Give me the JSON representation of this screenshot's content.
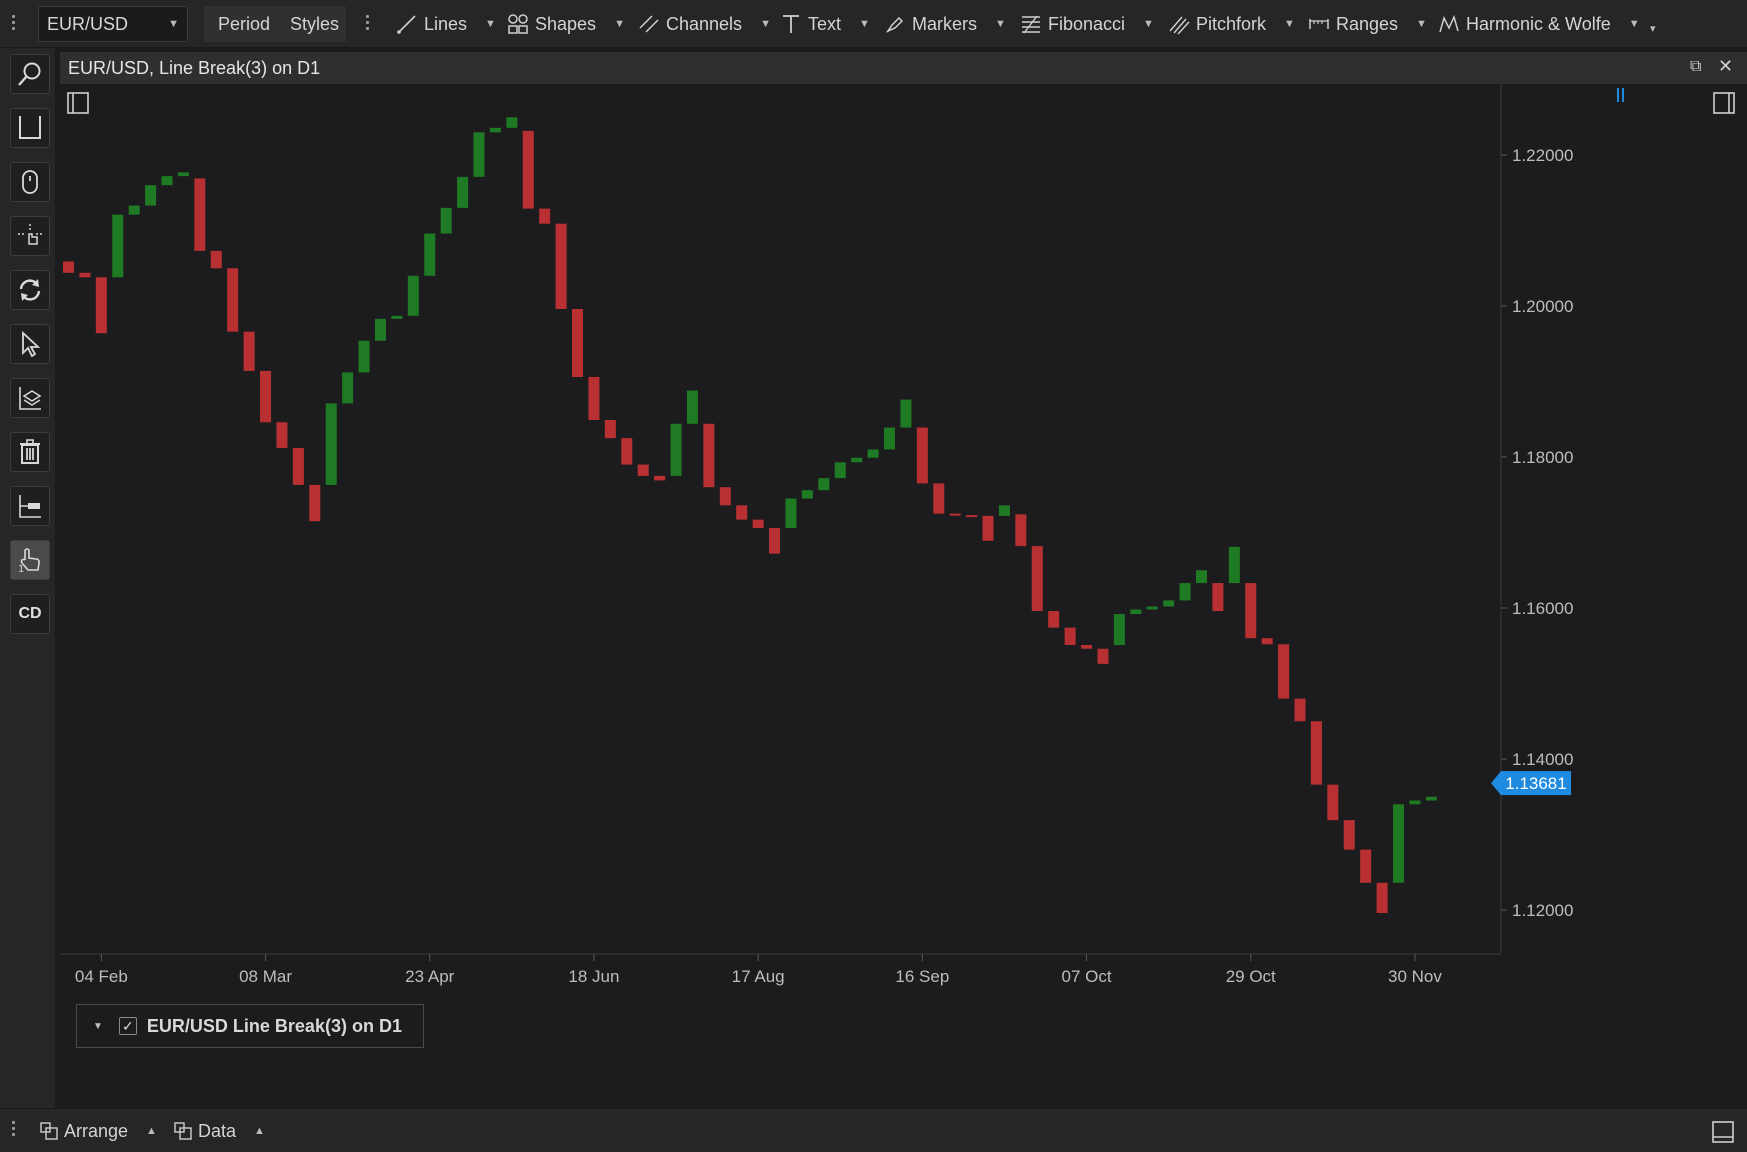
{
  "toolbar": {
    "symbol": "EUR/USD",
    "period_label": "Period",
    "styles_label": "Styles",
    "tools": [
      {
        "id": "lines",
        "label": "Lines",
        "icon": "line-tool-icon"
      },
      {
        "id": "shapes",
        "label": "Shapes",
        "icon": "shapes-icon"
      },
      {
        "id": "channels",
        "label": "Channels",
        "icon": "channels-icon"
      },
      {
        "id": "text",
        "label": "Text",
        "icon": "text-tool-icon"
      },
      {
        "id": "markers",
        "label": "Markers",
        "icon": "marker-icon"
      },
      {
        "id": "fibonacci",
        "label": "Fibonacci",
        "icon": "fibonacci-icon"
      },
      {
        "id": "pitchfork",
        "label": "Pitchfork",
        "icon": "pitchfork-icon"
      },
      {
        "id": "ranges",
        "label": "Ranges",
        "icon": "ranges-icon"
      },
      {
        "id": "harmonic",
        "label": "Harmonic & Wolfe",
        "icon": "harmonic-icon"
      }
    ]
  },
  "left_toolbar": {
    "items": [
      {
        "id": "zoom",
        "icon": "magnifier-icon"
      },
      {
        "id": "axis",
        "icon": "axis-frame-icon"
      },
      {
        "id": "mouse",
        "icon": "mouse-icon"
      },
      {
        "id": "crosshair",
        "icon": "crosshair-hand-icon"
      },
      {
        "id": "refresh",
        "icon": "refresh-icon"
      },
      {
        "id": "select",
        "icon": "cursor-icon"
      },
      {
        "id": "layers",
        "icon": "layers-icon"
      },
      {
        "id": "delete",
        "icon": "trash-icon"
      },
      {
        "id": "hline",
        "icon": "horizontal-line-icon"
      },
      {
        "id": "one-click",
        "icon": "one-click-trade-icon",
        "active": true
      },
      {
        "id": "cd",
        "label": "CD"
      }
    ]
  },
  "chart_window": {
    "title": "EUR/USD, Line Break(3) on D1",
    "legend_label": "EUR/USD Line Break(3) on D1",
    "current_price": "1.13681",
    "colors": {
      "up": "#1f7a24",
      "down": "#b93033",
      "price_tag": "#1f8be0",
      "background": "#1c1c1e"
    }
  },
  "chart_data": {
    "type": "line-break",
    "title": "EUR/USD, Line Break(3) on D1",
    "y_ticks": [
      "1.22000",
      "1.20000",
      "1.18000",
      "1.16000",
      "1.14000",
      "1.12000"
    ],
    "ylim": [
      1.1143,
      1.2245
    ],
    "x_ticks": [
      "04 Feb",
      "08 Mar",
      "23 Apr",
      "18 Jun",
      "17 Aug",
      "16 Sep",
      "07 Oct",
      "29 Oct",
      "30 Nov"
    ],
    "x_tick_index": [
      2,
      12,
      22,
      32,
      42,
      52,
      62,
      72,
      82
    ],
    "bricks": [
      {
        "o": 1.2059,
        "c": 1.2044,
        "dir": "down"
      },
      {
        "o": 1.2044,
        "c": 1.2038,
        "dir": "down"
      },
      {
        "o": 1.2038,
        "c": 1.1964,
        "dir": "down"
      },
      {
        "o": 1.2038,
        "c": 1.2121,
        "dir": "up"
      },
      {
        "o": 1.2121,
        "c": 1.2133,
        "dir": "up"
      },
      {
        "o": 1.2133,
        "c": 1.216,
        "dir": "up"
      },
      {
        "o": 1.216,
        "c": 1.2172,
        "dir": "up"
      },
      {
        "o": 1.2172,
        "c": 1.2177,
        "dir": "up"
      },
      {
        "o": 1.2169,
        "c": 1.2073,
        "dir": "down"
      },
      {
        "o": 1.2073,
        "c": 1.205,
        "dir": "down"
      },
      {
        "o": 1.205,
        "c": 1.1966,
        "dir": "down"
      },
      {
        "o": 1.1966,
        "c": 1.1914,
        "dir": "down"
      },
      {
        "o": 1.1914,
        "c": 1.1846,
        "dir": "down"
      },
      {
        "o": 1.1846,
        "c": 1.1812,
        "dir": "down"
      },
      {
        "o": 1.1812,
        "c": 1.1763,
        "dir": "down"
      },
      {
        "o": 1.1763,
        "c": 1.1715,
        "dir": "down"
      },
      {
        "o": 1.1763,
        "c": 1.1871,
        "dir": "up"
      },
      {
        "o": 1.1871,
        "c": 1.1912,
        "dir": "up"
      },
      {
        "o": 1.1912,
        "c": 1.1954,
        "dir": "up"
      },
      {
        "o": 1.1954,
        "c": 1.1983,
        "dir": "up"
      },
      {
        "o": 1.1983,
        "c": 1.1987,
        "dir": "up"
      },
      {
        "o": 1.1987,
        "c": 1.204,
        "dir": "up"
      },
      {
        "o": 1.204,
        "c": 1.2096,
        "dir": "up"
      },
      {
        "o": 1.2096,
        "c": 1.213,
        "dir": "up"
      },
      {
        "o": 1.213,
        "c": 1.2171,
        "dir": "up"
      },
      {
        "o": 1.2171,
        "c": 1.223,
        "dir": "up"
      },
      {
        "o": 1.223,
        "c": 1.2236,
        "dir": "up"
      },
      {
        "o": 1.2236,
        "c": 1.225,
        "dir": "up"
      },
      {
        "o": 1.2232,
        "c": 1.2129,
        "dir": "down"
      },
      {
        "o": 1.2129,
        "c": 1.2109,
        "dir": "down"
      },
      {
        "o": 1.2109,
        "c": 1.1996,
        "dir": "down"
      },
      {
        "o": 1.1996,
        "c": 1.1906,
        "dir": "down"
      },
      {
        "o": 1.1906,
        "c": 1.1849,
        "dir": "down"
      },
      {
        "o": 1.1849,
        "c": 1.1825,
        "dir": "down"
      },
      {
        "o": 1.1825,
        "c": 1.179,
        "dir": "down"
      },
      {
        "o": 1.179,
        "c": 1.1775,
        "dir": "down"
      },
      {
        "o": 1.1775,
        "c": 1.1769,
        "dir": "down"
      },
      {
        "o": 1.1775,
        "c": 1.1844,
        "dir": "up"
      },
      {
        "o": 1.1844,
        "c": 1.1888,
        "dir": "up"
      },
      {
        "o": 1.1844,
        "c": 1.176,
        "dir": "down"
      },
      {
        "o": 1.176,
        "c": 1.1736,
        "dir": "down"
      },
      {
        "o": 1.1736,
        "c": 1.1717,
        "dir": "down"
      },
      {
        "o": 1.1717,
        "c": 1.1706,
        "dir": "down"
      },
      {
        "o": 1.1706,
        "c": 1.1672,
        "dir": "down"
      },
      {
        "o": 1.1706,
        "c": 1.1745,
        "dir": "up"
      },
      {
        "o": 1.1745,
        "c": 1.1756,
        "dir": "up"
      },
      {
        "o": 1.1756,
        "c": 1.1772,
        "dir": "up"
      },
      {
        "o": 1.1772,
        "c": 1.1793,
        "dir": "up"
      },
      {
        "o": 1.1793,
        "c": 1.1799,
        "dir": "up"
      },
      {
        "o": 1.1799,
        "c": 1.181,
        "dir": "up"
      },
      {
        "o": 1.181,
        "c": 1.1839,
        "dir": "up"
      },
      {
        "o": 1.1839,
        "c": 1.1876,
        "dir": "up"
      },
      {
        "o": 1.1839,
        "c": 1.1765,
        "dir": "down"
      },
      {
        "o": 1.1765,
        "c": 1.1725,
        "dir": "down"
      },
      {
        "o": 1.1725,
        "c": 1.1723,
        "dir": "down"
      },
      {
        "o": 1.1723,
        "c": 1.1722,
        "dir": "down"
      },
      {
        "o": 1.1722,
        "c": 1.1689,
        "dir": "down"
      },
      {
        "o": 1.1722,
        "c": 1.1736,
        "dir": "up"
      },
      {
        "o": 1.1724,
        "c": 1.1682,
        "dir": "down"
      },
      {
        "o": 1.1682,
        "c": 1.1596,
        "dir": "down"
      },
      {
        "o": 1.1596,
        "c": 1.1574,
        "dir": "down"
      },
      {
        "o": 1.1574,
        "c": 1.1551,
        "dir": "down"
      },
      {
        "o": 1.1551,
        "c": 1.1546,
        "dir": "down"
      },
      {
        "o": 1.1546,
        "c": 1.1526,
        "dir": "down"
      },
      {
        "o": 1.1551,
        "c": 1.1592,
        "dir": "up"
      },
      {
        "o": 1.1592,
        "c": 1.1598,
        "dir": "up"
      },
      {
        "o": 1.1598,
        "c": 1.1602,
        "dir": "up"
      },
      {
        "o": 1.1602,
        "c": 1.161,
        "dir": "up"
      },
      {
        "o": 1.161,
        "c": 1.1633,
        "dir": "up"
      },
      {
        "o": 1.1633,
        "c": 1.165,
        "dir": "up"
      },
      {
        "o": 1.1633,
        "c": 1.1596,
        "dir": "down"
      },
      {
        "o": 1.1633,
        "c": 1.1681,
        "dir": "up"
      },
      {
        "o": 1.1633,
        "c": 1.156,
        "dir": "down"
      },
      {
        "o": 1.156,
        "c": 1.1552,
        "dir": "down"
      },
      {
        "o": 1.1552,
        "c": 1.148,
        "dir": "down"
      },
      {
        "o": 1.148,
        "c": 1.145,
        "dir": "down"
      },
      {
        "o": 1.145,
        "c": 1.1366,
        "dir": "down"
      },
      {
        "o": 1.1366,
        "c": 1.1319,
        "dir": "down"
      },
      {
        "o": 1.1319,
        "c": 1.128,
        "dir": "down"
      },
      {
        "o": 1.128,
        "c": 1.1236,
        "dir": "down"
      },
      {
        "o": 1.1236,
        "c": 1.1196,
        "dir": "down"
      },
      {
        "o": 1.1236,
        "c": 1.134,
        "dir": "up"
      },
      {
        "o": 1.134,
        "c": 1.1345,
        "dir": "up"
      },
      {
        "o": 1.1345,
        "c": 1.135,
        "dir": "up"
      }
    ]
  },
  "bottom_bar": {
    "arrange_label": "Arrange",
    "data_label": "Data"
  }
}
